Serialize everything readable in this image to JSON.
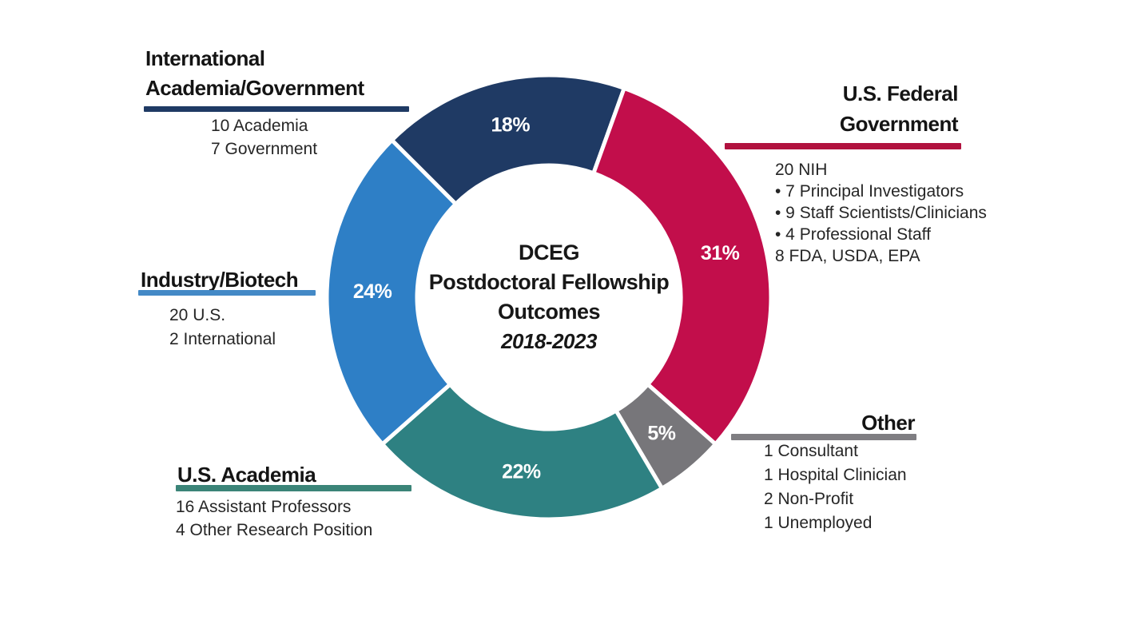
{
  "chart_data": {
    "type": "pie",
    "subtype": "donut",
    "title": "DCEG Postdoctoral Fellowship Outcomes",
    "subtitle": "2018-2023",
    "start_angle_deg": -45,
    "legend_position": "callouts-around-chart",
    "segments": [
      {
        "id": "international-academia-government",
        "label": "International Academia/Government",
        "value": 18,
        "pct_label": "18%",
        "color": "#1F3A64"
      },
      {
        "id": "us-federal-government",
        "label": "U.S. Federal Government",
        "value": 31,
        "pct_label": "31%",
        "color": "#C20E4B"
      },
      {
        "id": "other",
        "label": "Other",
        "value": 5,
        "pct_label": "5%",
        "color": "#77767A"
      },
      {
        "id": "us-academia",
        "label": "U.S. Academia",
        "value": 22,
        "pct_label": "22%",
        "color": "#2E8182"
      },
      {
        "id": "industry-biotech",
        "label": "Industry/Biotech",
        "value": 24,
        "pct_label": "24%",
        "color": "#2E7FC6"
      }
    ]
  },
  "center": {
    "line1": "DCEG",
    "line2": "Postdoctoral Fellowship",
    "line3": "Outcomes",
    "years": "2018-2023"
  },
  "callouts": {
    "international": {
      "heading_line1": "International",
      "heading_line2": "Academia/Government",
      "underline_color": "#1F3A64",
      "details": [
        "10 Academia",
        "7 Government"
      ]
    },
    "federal": {
      "heading_line1": "U.S. Federal",
      "heading_line2": "Government",
      "underline_color": "#B1123F",
      "details": [
        "20 NIH",
        "• 7 Principal Investigators",
        "• 9 Staff Scientists/Clinicians",
        "• 4 Professional Staff",
        "8 FDA, USDA, EPA"
      ]
    },
    "industry": {
      "heading": "Industry/Biotech",
      "underline_color": "#4389C6",
      "details": [
        "20 U.S.",
        "2 International"
      ]
    },
    "academia": {
      "heading": "U.S. Academia",
      "underline_color": "#3B8478",
      "details": [
        "16 Assistant Professors",
        "4 Other Research Position"
      ]
    },
    "other": {
      "heading": "Other",
      "underline_color": "#7F7E82",
      "details": [
        "1 Consultant",
        "1 Hospital Clinician",
        "2 Non-Profit",
        "1 Unemployed"
      ]
    }
  }
}
